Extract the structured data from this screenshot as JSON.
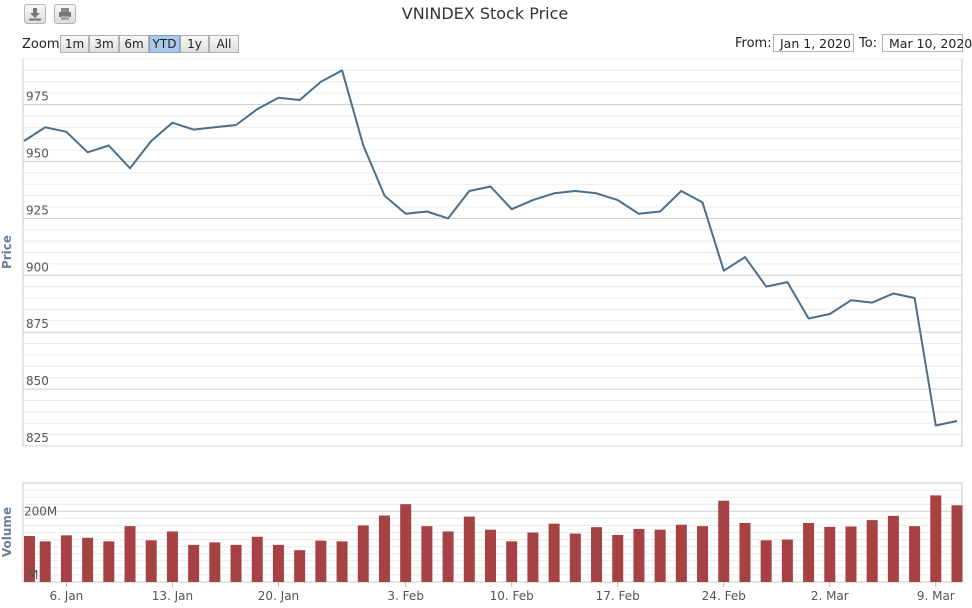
{
  "toolbar": {
    "download_icon": "download-icon",
    "print_icon": "print-icon"
  },
  "title": "VNINDEX Stock Price",
  "zoom": {
    "label": "Zoom",
    "buttons": [
      "1m",
      "3m",
      "6m",
      "YTD",
      "1y",
      "All"
    ],
    "selected": "YTD"
  },
  "range": {
    "from_label": "From:",
    "from_value": "Jan 1, 2020",
    "to_label": "To:",
    "to_value": "Mar 10, 2020"
  },
  "chart_data": [
    {
      "type": "line",
      "ylabel": "Price",
      "ylim": [
        825,
        995
      ],
      "yticks": [
        "825",
        "850",
        "875",
        "900",
        "925",
        "950",
        "975"
      ],
      "series": [
        {
          "values": [
            959,
            965,
            963,
            954,
            957,
            947,
            959,
            967,
            964,
            965,
            966,
            973,
            978,
            977,
            985,
            990,
            957,
            935,
            927,
            928,
            925,
            937,
            939,
            929,
            933,
            936,
            937,
            936,
            933,
            927,
            928,
            937,
            932,
            902,
            908,
            895,
            897,
            881,
            883,
            889,
            888,
            892,
            890,
            834,
            836
          ]
        }
      ],
      "xticks": [
        "6. Jan",
        "13. Jan",
        "20. Jan",
        "3. Feb",
        "10. Feb",
        "17. Feb",
        "24. Feb",
        "2. Mar",
        "9. Mar"
      ],
      "color": "#4a6f8e"
    },
    {
      "type": "bar",
      "ylabel": "Volume",
      "ylim_millions": [
        0,
        280
      ],
      "yticks": [
        "M",
        "200M"
      ],
      "series": [
        {
          "values_millions": [
            130,
            115,
            132,
            125,
            115,
            158,
            118,
            143,
            105,
            112,
            105,
            128,
            105,
            90,
            117,
            115,
            160,
            188,
            220,
            158,
            143,
            185,
            148,
            115,
            140,
            165,
            137,
            155,
            133,
            150,
            148,
            162,
            158,
            230,
            167,
            118,
            120,
            167,
            156,
            157,
            175,
            187,
            158,
            245,
            217
          ]
        }
      ],
      "color": "#a64244"
    }
  ]
}
